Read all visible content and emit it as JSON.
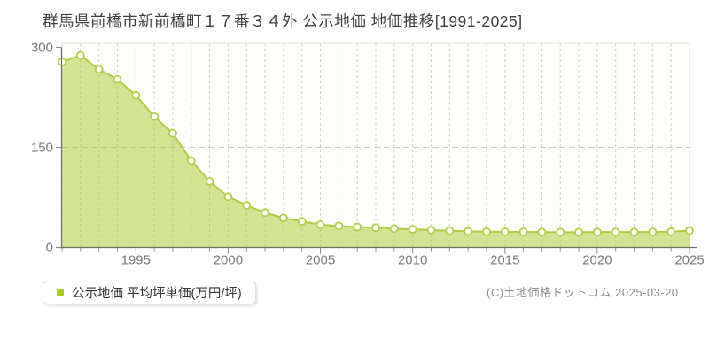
{
  "page": {
    "title": "群馬県前橋市新前橋町１７番３４外 公示地価 地価推移[1991-2025]"
  },
  "legend": {
    "swatch_color": "#a6ce26",
    "label": "公示地価 平均坪単価(万円/坪)"
  },
  "footer": {
    "copyright": "(C)土地価格ドットコム 2025-03-20"
  },
  "chart_data": {
    "type": "area",
    "title": "群馬県前橋市新前橋町１７番３４外 公示地価 地価推移[1991-2025]",
    "x": [
      1991,
      1992,
      1993,
      1994,
      1995,
      1996,
      1997,
      1998,
      1999,
      2000,
      2001,
      2002,
      2003,
      2004,
      2005,
      2006,
      2007,
      2008,
      2009,
      2010,
      2011,
      2012,
      2013,
      2014,
      2015,
      2016,
      2017,
      2018,
      2019,
      2020,
      2021,
      2022,
      2023,
      2024,
      2025
    ],
    "series": [
      {
        "name": "公示地価 平均坪単価(万円/坪)",
        "values": [
          278,
          288,
          267,
          252,
          228,
          196,
          171,
          130,
          99,
          76,
          63,
          52,
          44,
          39,
          34,
          32,
          30.5,
          29.5,
          28,
          27,
          26,
          25,
          24,
          23.5,
          23.3,
          23.2,
          23,
          22.8,
          22.8,
          23,
          23,
          23,
          23.2,
          23.5,
          25
        ]
      }
    ],
    "xlabel": "",
    "ylabel": "",
    "ylim": [
      0,
      300
    ],
    "yticks": [
      0,
      150,
      300
    ],
    "xticks": [
      1995,
      2000,
      2005,
      2010,
      2015,
      2020,
      2025
    ],
    "grid": true,
    "legend_position": "bottom-left",
    "colors": {
      "area_fill": "rgba(167,204,46,0.5)",
      "line": "#afca45",
      "marker_fill": "#ffffff",
      "marker_stroke": "#b3cd4d",
      "grid_vertical": "#cfcfcf",
      "grid_horizontal": "#c9c9c9",
      "plot_border": "#e2e2e2",
      "plot_background": "#fdfdfa",
      "axis": "#6e6e6e",
      "tick": "#8a8a8a",
      "tick_label": "#7a7a7a"
    }
  }
}
